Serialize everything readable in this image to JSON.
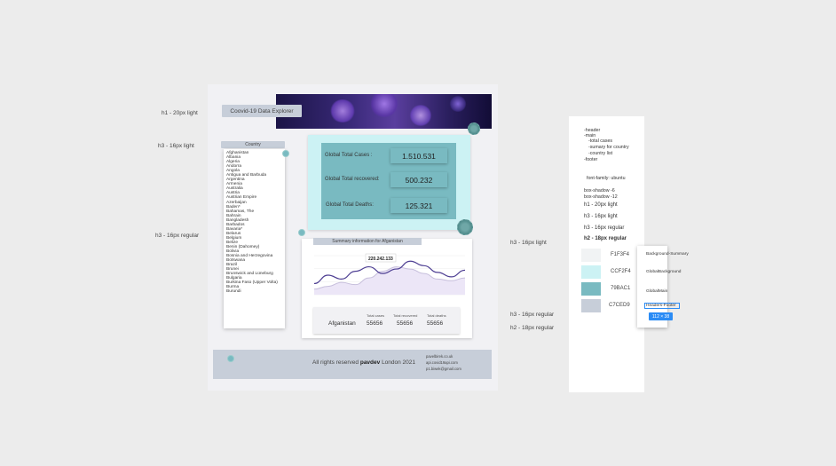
{
  "annotations_left": {
    "h1": "h1 - 20px light",
    "h3_light": "h3 - 16px light",
    "h3_regular": "h3 - 16px regular"
  },
  "annotations_right": {
    "h3_light": "h3 - 16px light",
    "h3_regular": "h3 - 16px regular",
    "h2_regular": "h2 - 18px regular"
  },
  "header": {
    "title": "Coovid-19 Data Explorer"
  },
  "country_list": {
    "heading": "Country",
    "items": [
      "Afghanistan",
      "Albania",
      "Algeria",
      "Andorra",
      "Angola",
      "Antigua and Barbuda",
      "Argentina",
      "Armenia",
      "Australia",
      "Austria",
      "Austrian Empire",
      "Azerbaijan",
      "Baden*",
      "Bahamas, The",
      "Bahrain",
      "Bangladesh",
      "Barbados",
      "Bavaria*",
      "Belarus",
      "Belgium",
      "Belize",
      "Benin (Dahomey)",
      "Bolivia",
      "Bosnia and Herzegovina",
      "Botswana",
      "Brazil",
      "Brunei",
      "Brunswick and Lüneburg",
      "Bulgaria",
      "Burkina Faso (Upper Volta)",
      "Burma",
      "Burundi"
    ]
  },
  "global_stats": {
    "cases_label": "Global Total Cases :",
    "cases_value": "1.510.531",
    "recovered_label": "Global Total recovered:",
    "recovered_value": "500.232",
    "deaths_label": "Global Total Deaths:",
    "deaths_value": "125.321"
  },
  "summary": {
    "heading": "Summary information for Afganistan",
    "tooltip": "220.242.133",
    "country": "Afganistan",
    "cases_label": "Total cases",
    "cases_value": "55656",
    "recovered_label": "Total recovered",
    "recovered_value": "55656",
    "deaths_label": "Total deaths",
    "deaths_value": "55656"
  },
  "footer": {
    "prefix": "All rights reserved",
    "brand": "pavdev",
    "suffix": "London 2021",
    "contacts": [
      "pavelbirek.co.uk",
      "api.covid19api.com",
      "p1.biwek@gmail.com"
    ]
  },
  "notes_panel": {
    "structure": [
      "-header",
      "-main",
      "  -total cases",
      "  -sumary for country",
      "  -country list",
      "-footer"
    ],
    "font": "font-family: ubuntu",
    "shadows": [
      "box-shadow -6",
      "box-shadow -12"
    ],
    "type_scale": [
      "h1 - 20px light",
      "h3 - 16px light",
      "h3 - 16px regular",
      "h2 - 18px regular"
    ],
    "colors": [
      {
        "hex": "F1F3F4",
        "color": "#F1F3F4",
        "usage": "Background-Summary"
      },
      {
        "hex": "CCF2F4",
        "color": "#CCF2F4",
        "usage": "GlobalBackground"
      },
      {
        "hex": "79BAC1",
        "color": "#79BAC1",
        "usage": "GlobalMain"
      },
      {
        "hex": "C7CED9",
        "color": "#C7CED9",
        "usage": "Headers-Footer"
      }
    ],
    "selection_size": "112 × 38"
  },
  "chart_data": {
    "type": "line",
    "title": "",
    "series": [
      {
        "values": [
          40,
          55,
          48,
          62,
          70,
          58,
          66,
          80,
          72,
          60,
          52,
          64
        ]
      },
      {
        "values": [
          30,
          35,
          42,
          38,
          50,
          62,
          70,
          66,
          58,
          48,
          45,
          50
        ]
      }
    ],
    "ylim": [
      20,
      90
    ]
  }
}
